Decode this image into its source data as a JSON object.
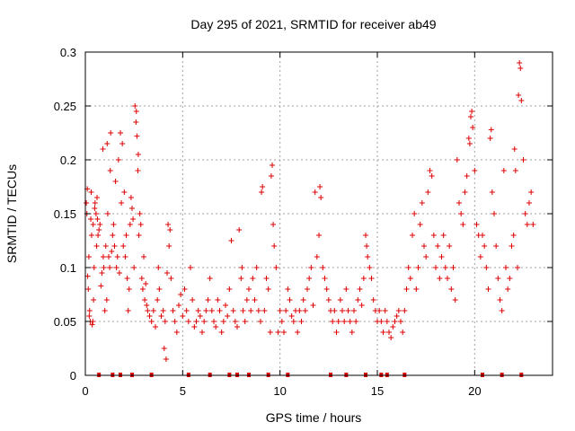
{
  "chart_data": {
    "type": "scatter",
    "title": "Day 295 of 2021, SRMTID for receiver ab49",
    "xlabel": "GPS time / hours",
    "ylabel": "SRMTID / TECUs",
    "xlim": [
      0,
      24
    ],
    "ylim": [
      0,
      0.3
    ],
    "grid": true,
    "marker": "plus",
    "color": "#dd0000",
    "x_ticks": [
      "0",
      "5",
      "10",
      "15",
      "20"
    ],
    "y_ticks": [
      "0",
      "0.05",
      "0.1",
      "0.15",
      "0.2",
      "0.25",
      "0.3"
    ],
    "zero_markers_x": [
      0.7,
      1.4,
      1.8,
      2.4,
      3.4,
      5.3,
      6.4,
      7.4,
      7.8,
      8.4,
      9.4,
      10.4,
      12.6,
      13.4,
      14.4,
      15.2,
      15.5,
      16.4,
      20.4,
      21.4,
      22.4
    ],
    "series": [
      {
        "name": "SRMTID",
        "points": [
          [
            0.05,
            0.16
          ],
          [
            0.08,
            0.15
          ],
          [
            0.1,
            0.173
          ],
          [
            0.12,
            0.092
          ],
          [
            0.15,
            0.08
          ],
          [
            0.18,
            0.11
          ],
          [
            0.2,
            0.055
          ],
          [
            0.22,
            0.06
          ],
          [
            0.25,
            0.05
          ],
          [
            0.28,
            0.145
          ],
          [
            0.3,
            0.17
          ],
          [
            0.32,
            0.13
          ],
          [
            0.35,
            0.047
          ],
          [
            0.38,
            0.05
          ],
          [
            0.4,
            0.14
          ],
          [
            0.42,
            0.07
          ],
          [
            0.45,
            0.1
          ],
          [
            0.48,
            0.155
          ],
          [
            0.5,
            0.16
          ],
          [
            0.55,
            0.15
          ],
          [
            0.58,
            0.12
          ],
          [
            0.6,
            0.165
          ],
          [
            0.62,
            0.145
          ],
          [
            0.65,
            0.13
          ],
          [
            0.7,
            0.135
          ],
          [
            0.75,
            0.14
          ],
          [
            0.8,
            0.083
          ],
          [
            0.85,
            0.095
          ],
          [
            0.9,
            0.21
          ],
          [
            0.92,
            0.11
          ],
          [
            0.95,
            0.1
          ],
          [
            1.0,
            0.06
          ],
          [
            1.05,
            0.12
          ],
          [
            1.1,
            0.07
          ],
          [
            1.12,
            0.215
          ],
          [
            1.15,
            0.15
          ],
          [
            1.2,
            0.11
          ],
          [
            1.25,
            0.1
          ],
          [
            1.28,
            0.19
          ],
          [
            1.3,
            0.225
          ],
          [
            1.35,
            0.115
          ],
          [
            1.4,
            0.13
          ],
          [
            1.45,
            0.14
          ],
          [
            1.5,
            0.12
          ],
          [
            1.55,
            0.18
          ],
          [
            1.6,
            0.1
          ],
          [
            1.65,
            0.11
          ],
          [
            1.7,
            0.2
          ],
          [
            1.75,
            0.095
          ],
          [
            1.8,
            0.225
          ],
          [
            1.85,
            0.16
          ],
          [
            1.9,
            0.215
          ],
          [
            1.95,
            0.12
          ],
          [
            2.0,
            0.17
          ],
          [
            2.05,
            0.11
          ],
          [
            2.1,
            0.13
          ],
          [
            2.15,
            0.09
          ],
          [
            2.2,
            0.06
          ],
          [
            2.25,
            0.08
          ],
          [
            2.3,
            0.14
          ],
          [
            2.35,
            0.165
          ],
          [
            2.4,
            0.155
          ],
          [
            2.45,
            0.145
          ],
          [
            2.5,
            0.1
          ],
          [
            2.55,
            0.25
          ],
          [
            2.6,
            0.235
          ],
          [
            2.62,
            0.245
          ],
          [
            2.65,
            0.222
          ],
          [
            2.7,
            0.19
          ],
          [
            2.72,
            0.205
          ],
          [
            2.75,
            0.13
          ],
          [
            2.8,
            0.15
          ],
          [
            2.85,
            0.14
          ],
          [
            2.9,
            0.09
          ],
          [
            2.95,
            0.08
          ],
          [
            3.0,
            0.11
          ],
          [
            3.05,
            0.07
          ],
          [
            3.1,
            0.085
          ],
          [
            3.15,
            0.065
          ],
          [
            3.2,
            0.06
          ],
          [
            3.3,
            0.055
          ],
          [
            3.4,
            0.05
          ],
          [
            3.5,
            0.06
          ],
          [
            3.6,
            0.045
          ],
          [
            3.7,
            0.07
          ],
          [
            3.75,
            0.1
          ],
          [
            3.8,
            0.08
          ],
          [
            3.9,
            0.055
          ],
          [
            4.0,
            0.06
          ],
          [
            4.05,
            0.025
          ],
          [
            4.1,
            0.05
          ],
          [
            4.15,
            0.015
          ],
          [
            4.2,
            0.095
          ],
          [
            4.25,
            0.14
          ],
          [
            4.3,
            0.12
          ],
          [
            4.35,
            0.135
          ],
          [
            4.4,
            0.09
          ],
          [
            4.5,
            0.06
          ],
          [
            4.6,
            0.05
          ],
          [
            4.7,
            0.04
          ],
          [
            4.8,
            0.065
          ],
          [
            4.9,
            0.075
          ],
          [
            5.0,
            0.055
          ],
          [
            5.1,
            0.08
          ],
          [
            5.2,
            0.06
          ],
          [
            5.3,
            0.05
          ],
          [
            5.4,
            0.1
          ],
          [
            5.5,
            0.07
          ],
          [
            5.6,
            0.045
          ],
          [
            5.7,
            0.05
          ],
          [
            5.8,
            0.06
          ],
          [
            5.9,
            0.055
          ],
          [
            6.0,
            0.04
          ],
          [
            6.1,
            0.05
          ],
          [
            6.2,
            0.06
          ],
          [
            6.3,
            0.07
          ],
          [
            6.4,
            0.09
          ],
          [
            6.5,
            0.06
          ],
          [
            6.6,
            0.05
          ],
          [
            6.7,
            0.045
          ],
          [
            6.8,
            0.07
          ],
          [
            6.9,
            0.06
          ],
          [
            7.0,
            0.04
          ],
          [
            7.1,
            0.05
          ],
          [
            7.2,
            0.065
          ],
          [
            7.3,
            0.055
          ],
          [
            7.4,
            0.08
          ],
          [
            7.5,
            0.125
          ],
          [
            7.6,
            0.06
          ],
          [
            7.7,
            0.05
          ],
          [
            7.8,
            0.045
          ],
          [
            7.9,
            0.135
          ],
          [
            8.0,
            0.09
          ],
          [
            8.05,
            0.1
          ],
          [
            8.1,
            0.06
          ],
          [
            8.2,
            0.05
          ],
          [
            8.3,
            0.07
          ],
          [
            8.4,
            0.08
          ],
          [
            8.5,
            0.06
          ],
          [
            8.6,
            0.09
          ],
          [
            8.7,
            0.07
          ],
          [
            8.8,
            0.1
          ],
          [
            8.9,
            0.06
          ],
          [
            9.0,
            0.05
          ],
          [
            9.05,
            0.17
          ],
          [
            9.1,
            0.175
          ],
          [
            9.2,
            0.06
          ],
          [
            9.3,
            0.09
          ],
          [
            9.4,
            0.08
          ],
          [
            9.5,
            0.04
          ],
          [
            9.55,
            0.185
          ],
          [
            9.6,
            0.195
          ],
          [
            9.65,
            0.14
          ],
          [
            9.7,
            0.12
          ],
          [
            9.8,
            0.1
          ],
          [
            9.9,
            0.04
          ],
          [
            10.0,
            0.06
          ],
          [
            10.1,
            0.05
          ],
          [
            10.2,
            0.04
          ],
          [
            10.3,
            0.06
          ],
          [
            10.4,
            0.08
          ],
          [
            10.5,
            0.07
          ],
          [
            10.6,
            0.055
          ],
          [
            10.7,
            0.05
          ],
          [
            10.8,
            0.06
          ],
          [
            10.9,
            0.04
          ],
          [
            11.0,
            0.06
          ],
          [
            11.1,
            0.05
          ],
          [
            11.2,
            0.07
          ],
          [
            11.3,
            0.06
          ],
          [
            11.4,
            0.08
          ],
          [
            11.5,
            0.09
          ],
          [
            11.6,
            0.1
          ],
          [
            11.7,
            0.065
          ],
          [
            11.8,
            0.17
          ],
          [
            11.9,
            0.11
          ],
          [
            12.0,
            0.13
          ],
          [
            12.05,
            0.175
          ],
          [
            12.1,
            0.165
          ],
          [
            12.2,
            0.1
          ],
          [
            12.3,
            0.09
          ],
          [
            12.4,
            0.08
          ],
          [
            12.5,
            0.07
          ],
          [
            12.6,
            0.06
          ],
          [
            12.7,
            0.05
          ],
          [
            12.8,
            0.06
          ],
          [
            12.9,
            0.04
          ],
          [
            13.0,
            0.05
          ],
          [
            13.1,
            0.07
          ],
          [
            13.2,
            0.06
          ],
          [
            13.3,
            0.05
          ],
          [
            13.4,
            0.08
          ],
          [
            13.5,
            0.06
          ],
          [
            13.6,
            0.05
          ],
          [
            13.7,
            0.04
          ],
          [
            13.8,
            0.06
          ],
          [
            13.9,
            0.05
          ],
          [
            14.0,
            0.07
          ],
          [
            14.1,
            0.08
          ],
          [
            14.2,
            0.065
          ],
          [
            14.3,
            0.09
          ],
          [
            14.4,
            0.13
          ],
          [
            14.45,
            0.12
          ],
          [
            14.5,
            0.11
          ],
          [
            14.6,
            0.1
          ],
          [
            14.7,
            0.09
          ],
          [
            14.8,
            0.07
          ],
          [
            14.9,
            0.06
          ],
          [
            15.0,
            0.05
          ],
          [
            15.1,
            0.06
          ],
          [
            15.2,
            0.05
          ],
          [
            15.3,
            0.04
          ],
          [
            15.4,
            0.06
          ],
          [
            15.5,
            0.05
          ],
          [
            15.6,
            0.04
          ],
          [
            15.7,
            0.035
          ],
          [
            15.8,
            0.045
          ],
          [
            15.9,
            0.05
          ],
          [
            16.0,
            0.055
          ],
          [
            16.1,
            0.06
          ],
          [
            16.2,
            0.05
          ],
          [
            16.3,
            0.04
          ],
          [
            16.4,
            0.06
          ],
          [
            16.5,
            0.08
          ],
          [
            16.6,
            0.1
          ],
          [
            16.7,
            0.09
          ],
          [
            16.8,
            0.13
          ],
          [
            16.9,
            0.15
          ],
          [
            17.0,
            0.08
          ],
          [
            17.1,
            0.1
          ],
          [
            17.2,
            0.14
          ],
          [
            17.3,
            0.16
          ],
          [
            17.4,
            0.12
          ],
          [
            17.5,
            0.11
          ],
          [
            17.6,
            0.17
          ],
          [
            17.7,
            0.19
          ],
          [
            17.8,
            0.185
          ],
          [
            17.9,
            0.13
          ],
          [
            18.0,
            0.1
          ],
          [
            18.1,
            0.12
          ],
          [
            18.2,
            0.09
          ],
          [
            18.3,
            0.11
          ],
          [
            18.4,
            0.13
          ],
          [
            18.5,
            0.1
          ],
          [
            18.6,
            0.09
          ],
          [
            18.7,
            0.12
          ],
          [
            18.8,
            0.08
          ],
          [
            18.9,
            0.1
          ],
          [
            19.0,
            0.07
          ],
          [
            19.1,
            0.2
          ],
          [
            19.2,
            0.16
          ],
          [
            19.3,
            0.15
          ],
          [
            19.4,
            0.14
          ],
          [
            19.5,
            0.17
          ],
          [
            19.6,
            0.185
          ],
          [
            19.7,
            0.22
          ],
          [
            19.75,
            0.215
          ],
          [
            19.8,
            0.24
          ],
          [
            19.85,
            0.245
          ],
          [
            19.9,
            0.23
          ],
          [
            20.0,
            0.19
          ],
          [
            20.1,
            0.14
          ],
          [
            20.2,
            0.13
          ],
          [
            20.3,
            0.11
          ],
          [
            20.4,
            0.13
          ],
          [
            20.5,
            0.12
          ],
          [
            20.6,
            0.1
          ],
          [
            20.7,
            0.08
          ],
          [
            20.8,
            0.22
          ],
          [
            20.85,
            0.228
          ],
          [
            20.9,
            0.17
          ],
          [
            21.0,
            0.15
          ],
          [
            21.1,
            0.12
          ],
          [
            21.2,
            0.09
          ],
          [
            21.3,
            0.07
          ],
          [
            21.4,
            0.06
          ],
          [
            21.5,
            0.19
          ],
          [
            21.6,
            0.1
          ],
          [
            21.7,
            0.08
          ],
          [
            21.8,
            0.09
          ],
          [
            21.9,
            0.12
          ],
          [
            22.0,
            0.13
          ],
          [
            22.05,
            0.21
          ],
          [
            22.1,
            0.19
          ],
          [
            22.2,
            0.1
          ],
          [
            22.25,
            0.26
          ],
          [
            22.3,
            0.29
          ],
          [
            22.35,
            0.285
          ],
          [
            22.4,
            0.255
          ],
          [
            22.5,
            0.2
          ],
          [
            22.6,
            0.15
          ],
          [
            22.7,
            0.14
          ],
          [
            22.8,
            0.16
          ],
          [
            22.9,
            0.17
          ],
          [
            23.0,
            0.14
          ]
        ]
      }
    ]
  }
}
